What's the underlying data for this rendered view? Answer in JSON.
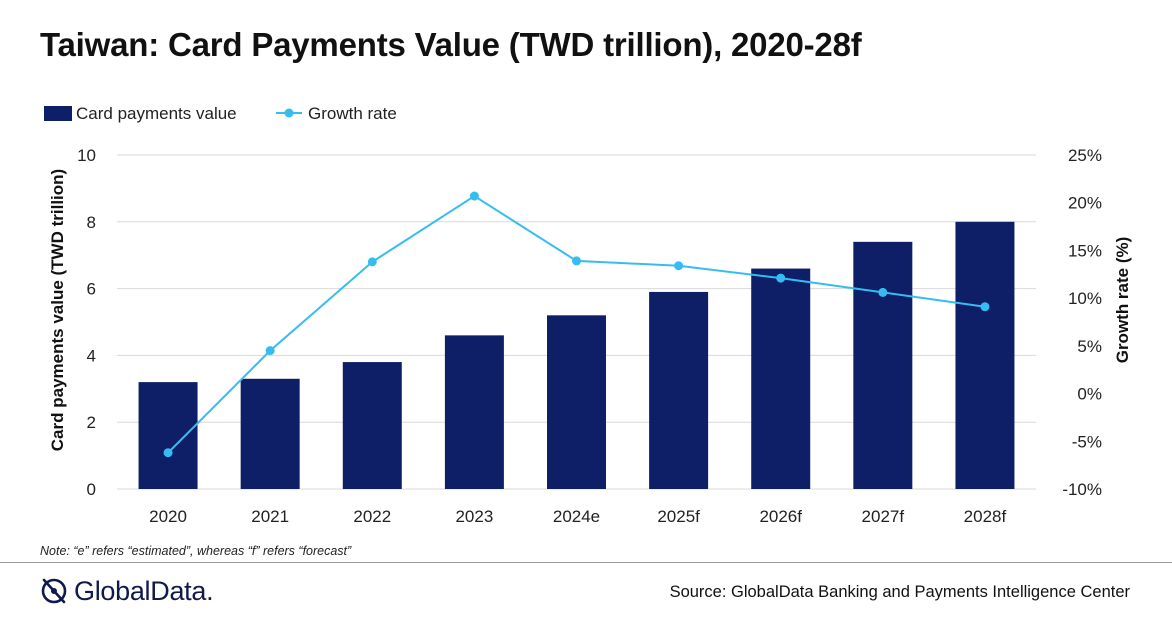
{
  "title": "Taiwan: Card Payments Value (TWD trillion), 2020-28f",
  "note": "Note: “e” refers “estimated”, whereas “f” refers “forecast”",
  "footer": {
    "logo_text": "GlobalData.",
    "source": "Source: GlobalData Banking and Payments Intelligence Center"
  },
  "colors": {
    "bar": "#0e1e67",
    "line": "#35bdf2",
    "grid": "#d9d9d9"
  },
  "chart_data": {
    "type": "bar+line",
    "title": "Taiwan: Card Payments Value (TWD trillion), 2020-28f",
    "categories": [
      "2020",
      "2021",
      "2022",
      "2023",
      "2024e",
      "2025f",
      "2026f",
      "2027f",
      "2028f"
    ],
    "series": [
      {
        "name": "Card payments value",
        "type": "bar",
        "axis": "left",
        "values": [
          3.2,
          3.3,
          3.8,
          4.6,
          5.2,
          5.9,
          6.6,
          7.4,
          8.0
        ]
      },
      {
        "name": "Growth rate",
        "type": "line",
        "axis": "right",
        "values": [
          -6.2,
          4.5,
          13.8,
          20.7,
          13.9,
          13.4,
          12.1,
          10.6,
          9.1
        ]
      }
    ],
    "ylabel": "Card payments value (TWD trillion)",
    "y2label": "Growth rate (%)",
    "ylim": [
      0,
      10
    ],
    "yticks": [
      "0",
      "2",
      "4",
      "6",
      "8",
      "10"
    ],
    "y2lim": [
      -10,
      25
    ],
    "y2ticks": [
      "-10%",
      "-5%",
      "0%",
      "5%",
      "10%",
      "15%",
      "20%",
      "25%"
    ],
    "grid": true,
    "legend": "top-left"
  }
}
